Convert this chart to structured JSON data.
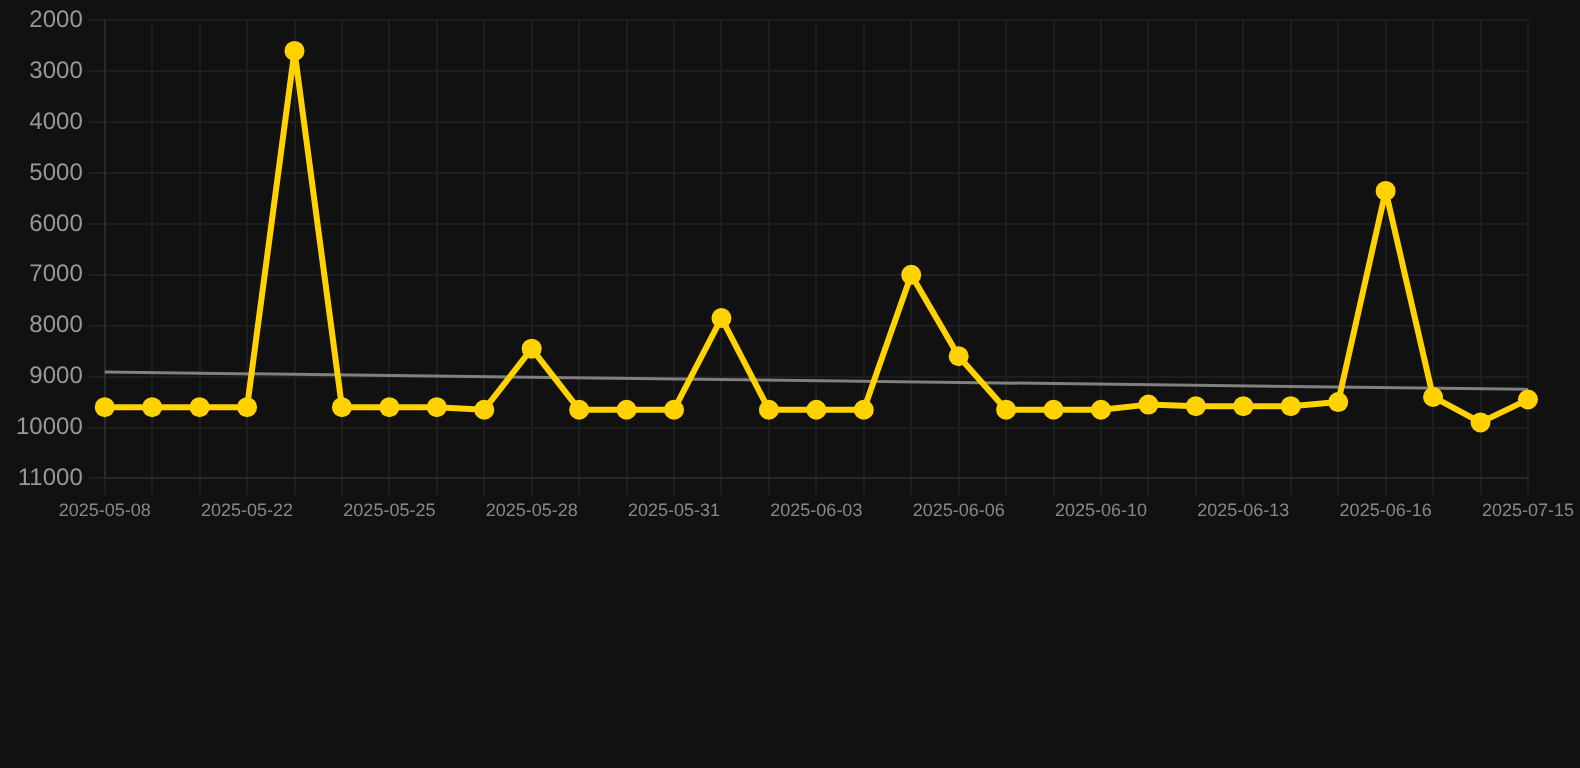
{
  "chart_data": {
    "type": "line",
    "categories": [
      "2025-05-08",
      null,
      null,
      "2025-05-22",
      null,
      null,
      "2025-05-25",
      null,
      null,
      "2025-05-28",
      null,
      null,
      "2025-05-31",
      null,
      null,
      "2025-06-03",
      null,
      null,
      "2025-06-06",
      null,
      null,
      "2025-06-10",
      null,
      null,
      "2025-06-13",
      null,
      null,
      "2025-06-16",
      null,
      null,
      "2025-07-15"
    ],
    "series": [
      {
        "color": "#ffd200",
        "marker": "circle",
        "values": [
          9600,
          9600,
          9600,
          9600,
          2600,
          9600,
          9600,
          9600,
          9650,
          8450,
          9650,
          9650,
          9650,
          7850,
          9650,
          9650,
          9650,
          7000,
          8600,
          9650,
          9650,
          9650,
          9550,
          9580,
          9580,
          9580,
          9500,
          5350,
          9400,
          9900,
          9450
        ]
      },
      {
        "color": "#808080",
        "marker": "none",
        "values": [
          8910,
          null,
          null,
          null,
          null,
          null,
          null,
          null,
          null,
          null,
          null,
          null,
          null,
          null,
          null,
          null,
          null,
          null,
          null,
          null,
          null,
          null,
          null,
          null,
          null,
          null,
          null,
          null,
          null,
          null,
          9250
        ]
      }
    ],
    "ylim": [
      11000,
      2000
    ],
    "yticks": [
      2000,
      3000,
      4000,
      5000,
      6000,
      7000,
      8000,
      9000,
      10000,
      11000
    ],
    "grid": true,
    "legend": false
  }
}
